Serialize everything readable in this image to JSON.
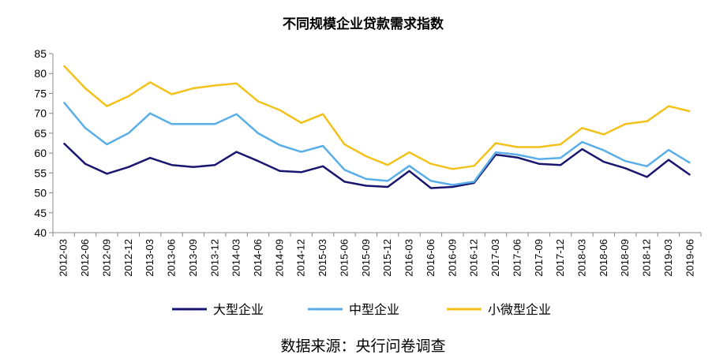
{
  "chart_data": {
    "type": "line",
    "title": "不同规模企业贷款需求指数",
    "xlabel": "",
    "ylabel": "",
    "ylim": [
      40,
      85
    ],
    "yticks": [
      40,
      45,
      50,
      55,
      60,
      65,
      70,
      75,
      80,
      85
    ],
    "grid": false,
    "legend_position": "bottom",
    "categories": [
      "2012-03",
      "2012-06",
      "2012-09",
      "2012-12",
      "2013-03",
      "2013-06",
      "2013-09",
      "2013-12",
      "2014-03",
      "2014-06",
      "2014-09",
      "2014-12",
      "2015-03",
      "2015-06",
      "2015-09",
      "2015-12",
      "2016-03",
      "2016-06",
      "2016-09",
      "2016-12",
      "2017-03",
      "2017-06",
      "2017-09",
      "2017-12",
      "2018-03",
      "2018-06",
      "2018-09",
      "2018-12",
      "2019-03",
      "2019-06"
    ],
    "series": [
      {
        "name": "大型企业",
        "color": "#1a1670",
        "values": [
          62.5,
          57.3,
          54.8,
          56.5,
          58.8,
          57.0,
          56.5,
          57.0,
          60.3,
          58.0,
          55.5,
          55.2,
          56.7,
          52.8,
          51.8,
          51.5,
          55.5,
          51.2,
          51.5,
          52.5,
          59.6,
          58.9,
          57.3,
          57.0,
          61.0,
          57.8,
          56.2,
          54.0,
          58.3,
          54.5
        ]
      },
      {
        "name": "中型企业",
        "color": "#5aaee8",
        "values": [
          72.8,
          66.3,
          62.2,
          65.0,
          70.0,
          67.3,
          67.3,
          67.3,
          69.8,
          65.0,
          62.0,
          60.3,
          61.8,
          55.8,
          53.5,
          53.0,
          56.8,
          53.0,
          52.0,
          52.8,
          60.2,
          59.6,
          58.5,
          58.8,
          62.8,
          60.7,
          58.0,
          56.7,
          60.8,
          57.5
        ]
      },
      {
        "name": "小微型企业",
        "color": "#f2c21a",
        "values": [
          82.0,
          76.3,
          71.8,
          74.3,
          77.8,
          74.8,
          76.3,
          77.0,
          77.5,
          73.0,
          70.8,
          67.6,
          69.8,
          62.2,
          59.2,
          57.0,
          60.2,
          57.3,
          56.0,
          56.8,
          62.5,
          61.5,
          61.5,
          62.2,
          66.3,
          64.7,
          67.3,
          68.0,
          71.8,
          70.5
        ]
      }
    ]
  },
  "source": "数据来源：央行问卷调查"
}
